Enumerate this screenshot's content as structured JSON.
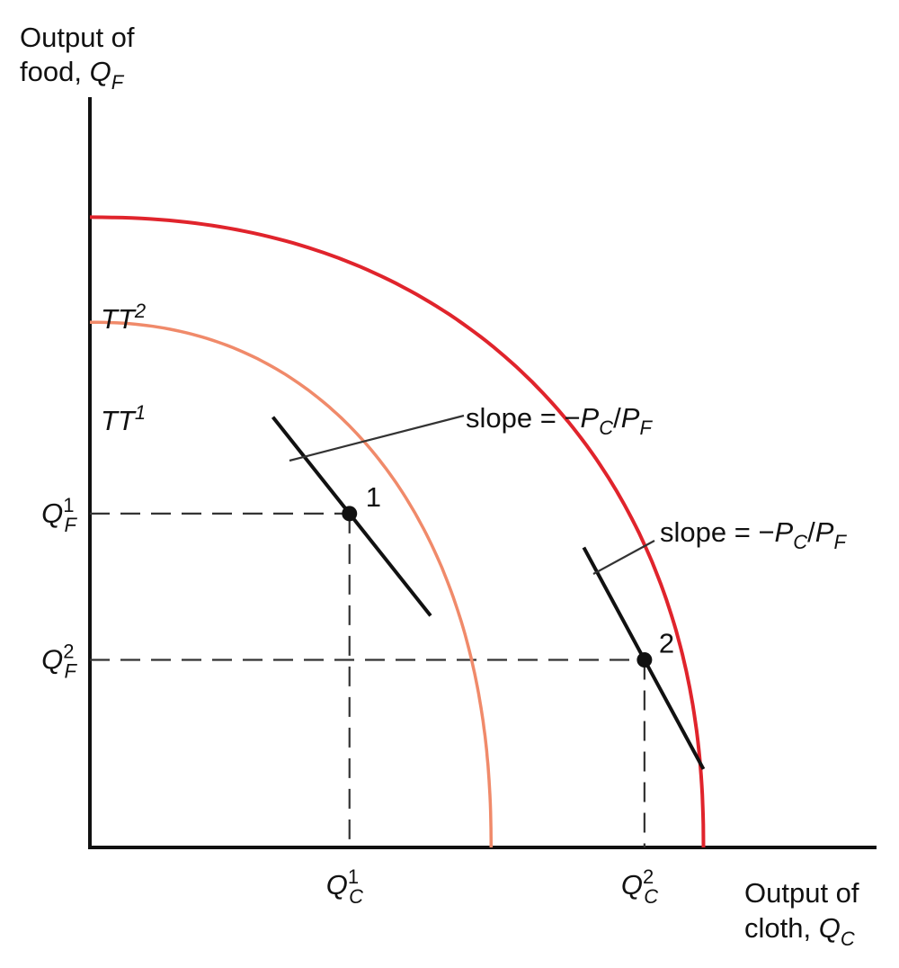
{
  "chart_data": {
    "type": "line",
    "title": "",
    "ylabel": {
      "line1": "Output of",
      "line2_prefix": "food, ",
      "var": "Q",
      "sub": "F"
    },
    "xlabel": {
      "line1": "Output of",
      "line2_prefix": "cloth, ",
      "var": "Q",
      "sub": "C"
    },
    "xlim": [
      0,
      100
    ],
    "ylim": [
      0,
      100
    ],
    "grid": false,
    "series": [
      {
        "name": "TT1",
        "label_base": "TT",
        "label_sup": "1",
        "color": "#f08a6a",
        "x_intercept": 51,
        "y_intercept": 70
      },
      {
        "name": "TT2",
        "label_base": "TT",
        "label_sup": "2",
        "color": "#e0242c",
        "x_intercept": 78,
        "y_intercept": 84
      }
    ],
    "points": [
      {
        "label": "1",
        "x": 33,
        "y": 44.5,
        "x_tick": {
          "var": "Q",
          "sub": "C",
          "sup": "1"
        },
        "y_tick": {
          "var": "Q",
          "sub": "F",
          "sup": "1"
        }
      },
      {
        "label": "2",
        "x": 70.5,
        "y": 25,
        "x_tick": {
          "var": "Q",
          "sub": "C",
          "sup": "2"
        },
        "y_tick": {
          "var": "Q",
          "sub": "F",
          "sup": "2"
        }
      }
    ],
    "annotations": [
      {
        "text_prefix": "slope = −",
        "p1": "P",
        "s1": "C",
        "slash": "/",
        "p2": "P",
        "s2": "F",
        "target_point": "1"
      },
      {
        "text_prefix": "slope = −",
        "p1": "P",
        "s1": "C",
        "slash": "/",
        "p2": "P",
        "s2": "F",
        "target_point": "2"
      }
    ]
  }
}
